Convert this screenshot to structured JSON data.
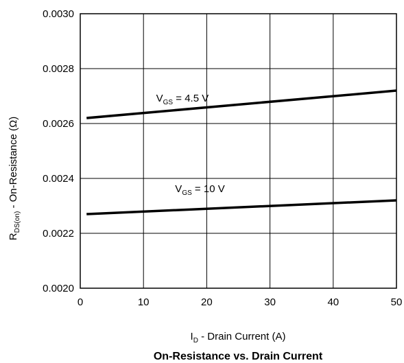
{
  "chart_data": {
    "type": "line",
    "title": "On-Resistance vs. Drain Current",
    "xlabel": {
      "main": "I",
      "sub": "D",
      "rest": " - Drain Current (A)"
    },
    "ylabel": {
      "main": "R",
      "sub": "DS(on)",
      "rest": " - On-Resistance (Ω)"
    },
    "xlim": [
      0,
      50
    ],
    "ylim": [
      0.002,
      0.003
    ],
    "x_ticks": [
      0,
      10,
      20,
      30,
      40,
      50
    ],
    "x_tick_labels": [
      "0",
      "10",
      "20",
      "30",
      "40",
      "50"
    ],
    "y_ticks": [
      0.002,
      0.0022,
      0.0024,
      0.0026,
      0.0028,
      0.003
    ],
    "y_tick_labels": [
      "0.0020",
      "0.0022",
      "0.0024",
      "0.0026",
      "0.0028",
      "0.0030"
    ],
    "grid": true,
    "line_color": "#000000",
    "series": [
      {
        "label": {
          "main": "V",
          "sub": "GS",
          "rest": " = 4.5 V"
        },
        "label_at": [
          12,
          0.00268
        ],
        "x": [
          1,
          50
        ],
        "y": [
          0.00262,
          0.00272
        ]
      },
      {
        "label": {
          "main": "V",
          "sub": "GS",
          "rest": " = 10 V"
        },
        "label_at": [
          15,
          0.00235
        ],
        "x": [
          1,
          50
        ],
        "y": [
          0.00227,
          0.00232
        ]
      }
    ]
  }
}
